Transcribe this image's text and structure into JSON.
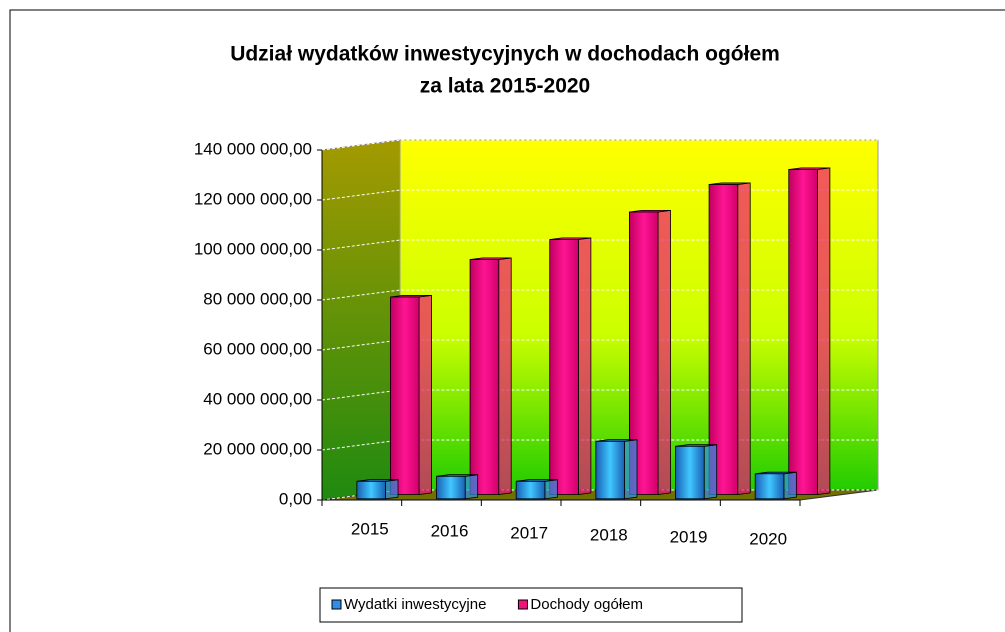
{
  "chart_data": {
    "type": "bar3d",
    "title": [
      "Udział wydatków inwestycyjnych  w dochodach ogółem",
      "za lata 2015-2020"
    ],
    "categories": [
      "2015",
      "2016",
      "2017",
      "2018",
      "2019",
      "2020"
    ],
    "series": [
      {
        "name": "Wydatki inwestycyjne",
        "color": "#2f8fe6",
        "values": [
          7000000,
          9000000,
          7000000,
          23000000,
          21000000,
          10000000
        ]
      },
      {
        "name": "Dochody ogółem",
        "color": "#f0147a",
        "values": [
          79000000,
          94000000,
          102000000,
          113000000,
          124000000,
          130000000
        ]
      }
    ],
    "ylim": [
      0,
      140000000
    ],
    "yticks": [
      {
        "value": 0,
        "label": "0,00"
      },
      {
        "value": 20000000,
        "label": "20 000 000,00"
      },
      {
        "value": 40000000,
        "label": "40 000 000,00"
      },
      {
        "value": 60000000,
        "label": "60 000 000,00"
      },
      {
        "value": 80000000,
        "label": "80 000 000,00"
      },
      {
        "value": 100000000,
        "label": "100 000 000,00"
      },
      {
        "value": 120000000,
        "label": "120 000 000,00"
      },
      {
        "value": 140000000,
        "label": "140 000 000,00"
      }
    ],
    "grid": true,
    "legend": "bottom"
  }
}
